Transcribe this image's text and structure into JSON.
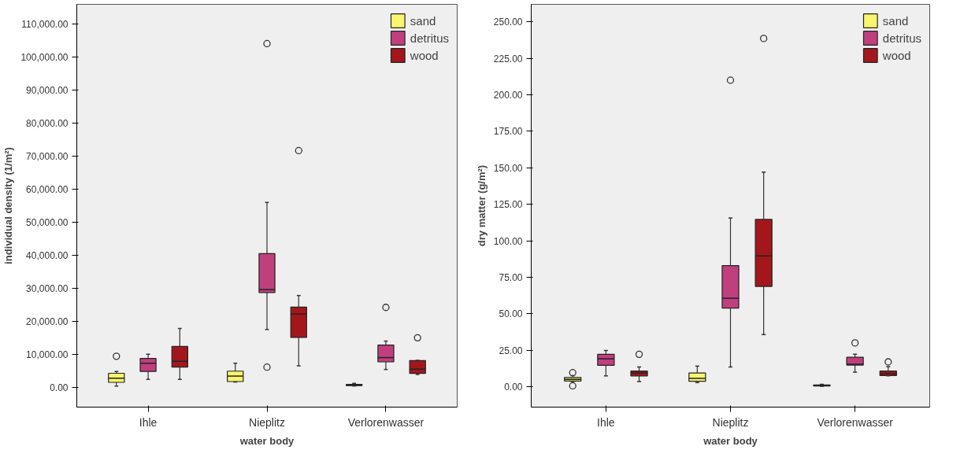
{
  "chart_data": [
    {
      "type": "box",
      "xlabel": "water body",
      "ylabel": "individual density (1/m²)",
      "categories": [
        "Ihle",
        "Nieplitz",
        "Verlorenwasser"
      ],
      "legend": "top right",
      "grid": false,
      "ylim": [
        -6000,
        116000
      ],
      "yticks": [
        {
          "value": 0,
          "label": "0.00"
        },
        {
          "value": 10000,
          "label": "10,000.00"
        },
        {
          "value": 20000,
          "label": "20,000.00"
        },
        {
          "value": 30000,
          "label": "30,000.00"
        },
        {
          "value": 40000,
          "label": "40,000.00"
        },
        {
          "value": 50000,
          "label": "50,000.00"
        },
        {
          "value": 60000,
          "label": "60,000.00"
        },
        {
          "value": 70000,
          "label": "70,000.00"
        },
        {
          "value": 80000,
          "label": "80,000.00"
        },
        {
          "value": 90000,
          "label": "90,000.00"
        },
        {
          "value": 100000,
          "label": "100,000.00"
        },
        {
          "value": 110000,
          "label": "110,000.00"
        }
      ],
      "series": [
        {
          "name": "sand",
          "color": "#f8f56e",
          "boxes": [
            {
              "low": 400,
              "q1": 1500,
              "median": 2750,
              "q3": 4250,
              "high": 4800,
              "outliers": [
                9400
              ]
            },
            {
              "low": 1600,
              "q1": 1750,
              "median": 3400,
              "q3": 4900,
              "high": 7300
            },
            {
              "low": 400,
              "q1": 500,
              "median": 650,
              "q3": 900,
              "high": 1200
            }
          ]
        },
        {
          "name": "detritus",
          "color": "#c0407e",
          "boxes": [
            {
              "low": 2400,
              "q1": 4800,
              "median": 7300,
              "q3": 8750,
              "high": 10000
            },
            {
              "low": 17500,
              "q1": 28700,
              "median": 29600,
              "q3": 40500,
              "high": 56000,
              "outliers": [
                6100,
                104100
              ]
            },
            {
              "low": 5400,
              "q1": 7700,
              "median": 9000,
              "q3": 12800,
              "high": 14000,
              "outliers": [
                24200
              ]
            }
          ]
        },
        {
          "name": "wood",
          "color": "#a3171c",
          "boxes": [
            {
              "low": 2400,
              "q1": 6100,
              "median": 7900,
              "q3": 12400,
              "high": 17800
            },
            {
              "low": 6500,
              "q1": 15100,
              "median": 22200,
              "q3": 24300,
              "high": 27800,
              "outliers": [
                71700
              ]
            },
            {
              "low": 3900,
              "q1": 4200,
              "median": 5500,
              "q3": 8100,
              "high": 8200,
              "outliers": [
                15000
              ]
            }
          ]
        }
      ]
    },
    {
      "type": "box",
      "xlabel": "water body",
      "ylabel": "dry matter (g/m²)",
      "categories": [
        "Ihle",
        "Nieplitz",
        "Verlorenwasser"
      ],
      "legend": "top right",
      "grid": false,
      "ylim": [
        -14,
        262
      ],
      "yticks": [
        {
          "value": 0,
          "label": "0.00"
        },
        {
          "value": 25,
          "label": "25.00"
        },
        {
          "value": 50,
          "label": "50.00"
        },
        {
          "value": 75,
          "label": "75.00"
        },
        {
          "value": 100,
          "label": "100.00"
        },
        {
          "value": 125,
          "label": "125.00"
        },
        {
          "value": 150,
          "label": "150.00"
        },
        {
          "value": 175,
          "label": "175.00"
        },
        {
          "value": 200,
          "label": "200.00"
        },
        {
          "value": 225,
          "label": "225.00"
        },
        {
          "value": 250,
          "label": "250.00"
        }
      ],
      "series": [
        {
          "name": "sand",
          "color": "#f8f56e",
          "boxes": [
            {
              "low": 3.5,
              "q1": 3.9,
              "median": 5.0,
              "q3": 6.3,
              "high": 7.6,
              "outliers": [
                0.6,
                9.6
              ]
            },
            {
              "low": 2.8,
              "q1": 3.7,
              "median": 5.7,
              "q3": 9.4,
              "high": 14.1
            },
            {
              "low": 0.3,
              "q1": 0.5,
              "median": 0.8,
              "q3": 1.2,
              "high": 1.6
            }
          ]
        },
        {
          "name": "detritus",
          "color": "#c0407e",
          "boxes": [
            {
              "low": 7.4,
              "q1": 14.6,
              "median": 19.1,
              "q3": 22.2,
              "high": 24.8
            },
            {
              "low": 13.5,
              "q1": 53.9,
              "median": 60.6,
              "q3": 83.0,
              "high": 115.6,
              "outliers": [
                210
              ]
            },
            {
              "low": 10.0,
              "q1": 14.8,
              "median": 15.4,
              "q3": 20.2,
              "high": 22.2,
              "outliers": [
                30.0
              ]
            }
          ]
        },
        {
          "name": "wood",
          "color": "#a3171c",
          "boxes": [
            {
              "low": 3.5,
              "q1": 7.4,
              "median": 9.3,
              "q3": 10.7,
              "high": 13.5,
              "outliers": [
                22.2
              ]
            },
            {
              "low": 35.7,
              "q1": 68.7,
              "median": 89.6,
              "q3": 114.7,
              "high": 147,
              "outliers": [
                238.6
              ]
            },
            {
              "low": 7.4,
              "q1": 7.6,
              "median": 8.9,
              "q3": 10.7,
              "high": 13.7,
              "outliers": [
                17.0
              ]
            }
          ]
        }
      ]
    }
  ]
}
